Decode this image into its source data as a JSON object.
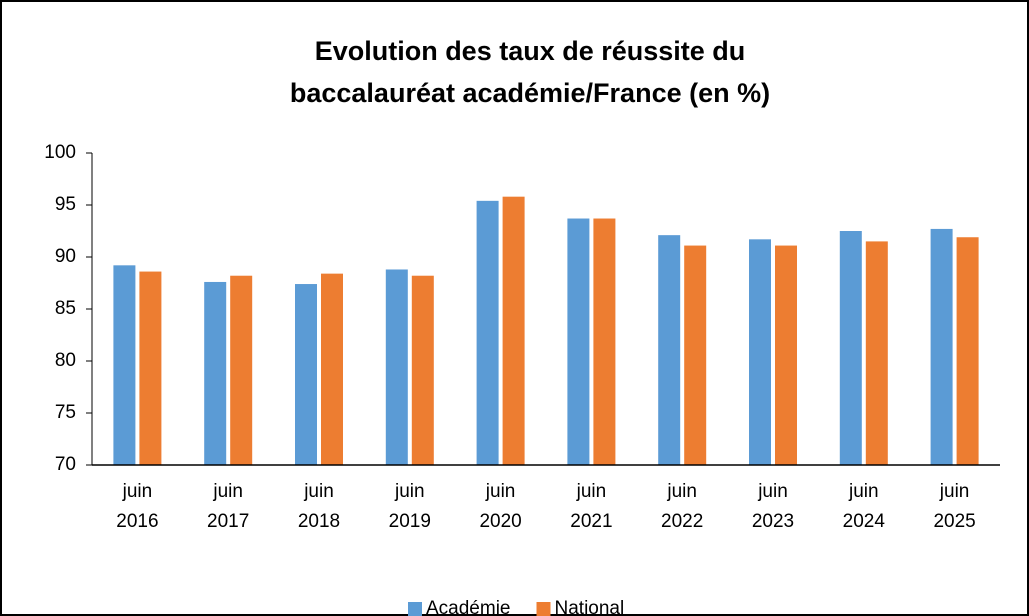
{
  "chart_data": {
    "type": "bar",
    "title": "Evolution des taux de réussite du baccalauréat académie/France (en %)",
    "categories": [
      "juin 2016",
      "juin 2017",
      "juin 2018",
      "juin 2019",
      "juin 2020",
      "juin 2021",
      "juin 2022",
      "juin 2023",
      "juin 2024",
      "juin 2025"
    ],
    "series": [
      {
        "name": "Académie",
        "color": "#5b9bd5",
        "values": [
          89.2,
          87.6,
          87.4,
          88.8,
          95.4,
          93.7,
          92.1,
          91.7,
          92.5,
          92.7
        ]
      },
      {
        "name": "National",
        "color": "#ed7d31",
        "values": [
          88.6,
          88.2,
          88.4,
          88.2,
          95.8,
          93.7,
          91.1,
          91.1,
          91.5,
          91.9
        ]
      }
    ],
    "ylim": [
      70,
      100
    ],
    "yticks": [
      70,
      75,
      80,
      85,
      90,
      95,
      100
    ],
    "grid": false,
    "legend": "bottom"
  }
}
